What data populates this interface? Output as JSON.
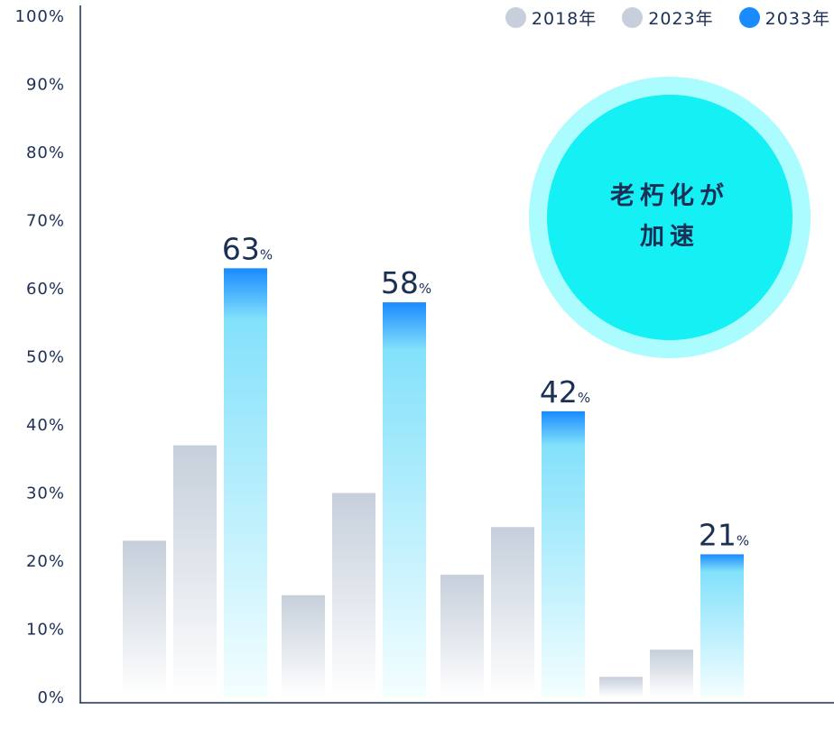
{
  "chart_data": {
    "type": "bar",
    "categories": [
      "",
      "",
      "",
      ""
    ],
    "series": [
      {
        "name": "2018年",
        "values": [
          23,
          15,
          18,
          3
        ]
      },
      {
        "name": "2023年",
        "values": [
          37,
          30,
          25,
          7
        ]
      },
      {
        "name": "2033年",
        "values": [
          63,
          58,
          42,
          21
        ]
      }
    ],
    "data_labels": [
      {
        "value": "63",
        "unit": "%"
      },
      {
        "value": "58",
        "unit": "%"
      },
      {
        "value": "42",
        "unit": "%"
      },
      {
        "value": "21",
        "unit": "%"
      }
    ],
    "yticks": [
      "0%",
      "10%",
      "20%",
      "30%",
      "40%",
      "50%",
      "60%",
      "70%",
      "80%",
      "90%",
      "100%"
    ],
    "ylim": [
      0,
      100
    ],
    "legend_position": "top-right",
    "grid": false,
    "title": "",
    "xlabel": "",
    "ylabel": ""
  },
  "legend": [
    {
      "label": "2018年",
      "color": "#c6cfdb"
    },
    {
      "label": "2023年",
      "color": "#c6cfdb"
    },
    {
      "label": "2033年",
      "color": "#1a8bff"
    }
  ],
  "badge": {
    "text": "老朽化が\n加速",
    "outer_color": "#aafcff",
    "inner_color": "#14f0f4"
  },
  "colors": {
    "gray_top": "#c6cfdb",
    "gray_bottom": "#ffffff",
    "blue_top": "#1a8bff",
    "blue_mid": "#83e1fb",
    "blue_bottom": "#f4feff",
    "axis": "#1c2f55",
    "text": "#1c2f55"
  }
}
